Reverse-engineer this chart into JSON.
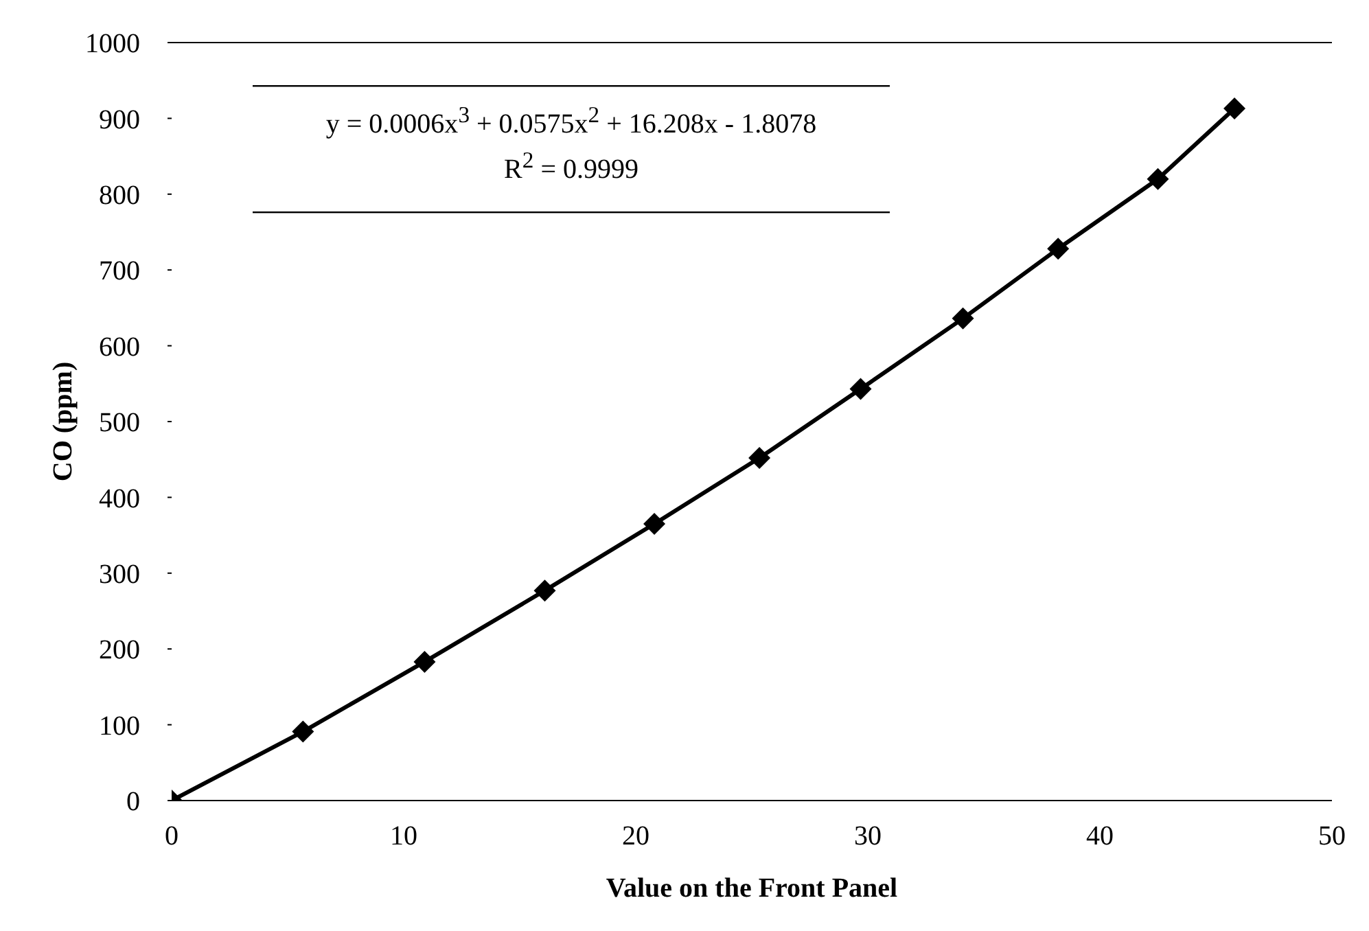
{
  "chart_data": {
    "type": "line",
    "xlabel": "Value on the Front Panel",
    "ylabel": "CO (ppm)",
    "annotations": [
      "y = 0.0006x$^{3}$ + 0.0575x$^{2}$ + 16.208x - 1.8078",
      "R$^{2}$ = 0.9999"
    ],
    "x": [
      0,
      5.66,
      10.9,
      16.08,
      20.8,
      25.33,
      29.69,
      34.1,
      38.2,
      42.5,
      45.8
    ],
    "series": [
      {
        "color": "#000000",
        "values": [
          0,
          91,
          183,
          277,
          365,
          452,
          543,
          636,
          728,
          820,
          913
        ]
      }
    ],
    "xlim": [
      0,
      50
    ],
    "xticks": [
      0,
      10,
      20,
      30,
      40,
      50
    ],
    "ylim": [
      0,
      1000
    ],
    "yticks": [
      0,
      100,
      200,
      300,
      400,
      500,
      600,
      700,
      800,
      900,
      1000
    ],
    "marker": "diamond",
    "line_style": "solid",
    "grid": false,
    "legend": false
  }
}
